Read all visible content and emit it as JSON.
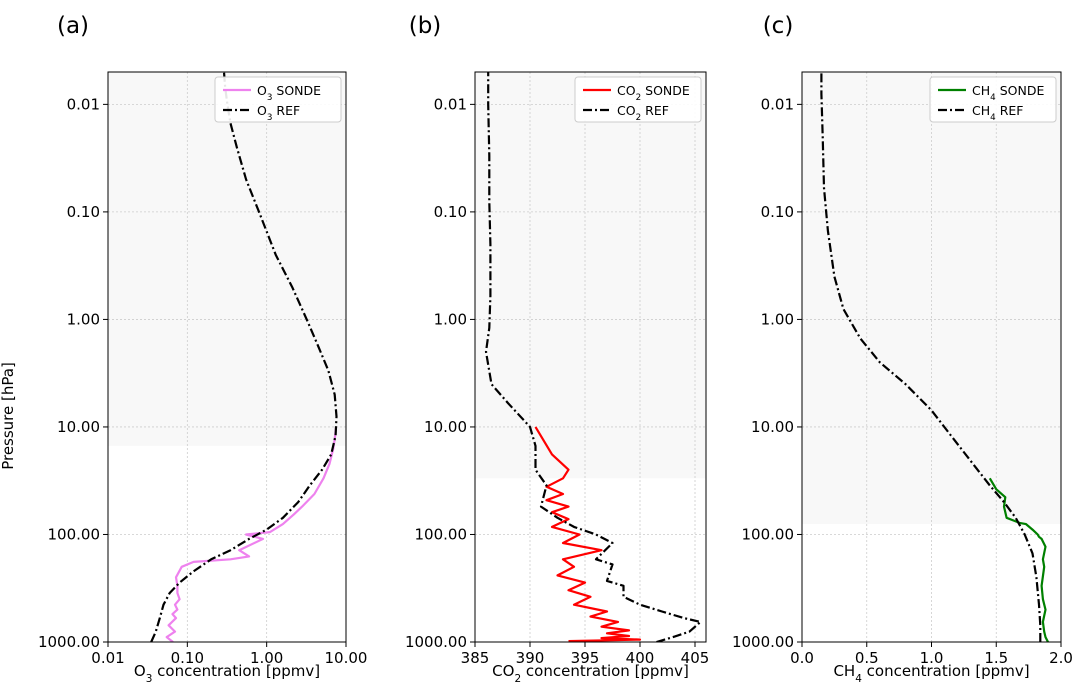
{
  "chart_data": [
    {
      "type": "line",
      "panel_label": "(a)",
      "xlabel_main": "O",
      "xlabel_sub": "3",
      "xlabel_rest": " concentration [ppmv]",
      "ylabel": "Pressure [hPa]",
      "xscale": "log",
      "yscale": "log-inverted",
      "xlim": [
        0.01,
        10.0
      ],
      "ylim": [
        1000,
        0.005
      ],
      "xticks": [
        0.01,
        0.1,
        1,
        10
      ],
      "xtick_labels": [
        "0.01",
        "0.10",
        "1.00",
        "10.00"
      ],
      "yticks": [
        0.01,
        0.1,
        1,
        10,
        100,
        1000
      ],
      "ytick_labels": [
        "0.01",
        "0.10",
        "1.00",
        "10.00",
        "100.00",
        "1000.00"
      ],
      "shade_above_p": 15,
      "grid": true,
      "legend_position": "top-right",
      "series": [
        {
          "name_main": "O",
          "name_sub": "3",
          "name_rest": " SONDE",
          "color": "#ee82ee",
          "style": "solid",
          "x": [
            0.066,
            0.055,
            0.07,
            0.058,
            0.072,
            0.065,
            0.075,
            0.07,
            0.08,
            0.075,
            0.075,
            0.072,
            0.085,
            0.12,
            0.35,
            0.6,
            0.45,
            0.9,
            0.55,
            1.1,
            1.6,
            2.2,
            2.8,
            4.0,
            5.2,
            6.2,
            6.9,
            7.2,
            7.4,
            7.5
          ],
          "y": [
            1000,
            900,
            800,
            700,
            600,
            550,
            500,
            450,
            400,
            350,
            300,
            250,
            200,
            180,
            170,
            160,
            140,
            110,
            100,
            95,
            80,
            65,
            55,
            42,
            30,
            22,
            16,
            13,
            11,
            10
          ]
        },
        {
          "name_main": "O",
          "name_sub": "3",
          "name_rest": " REF",
          "color": "#000000",
          "style": "dashdot",
          "x": [
            0.035,
            0.04,
            0.045,
            0.05,
            0.06,
            0.08,
            0.12,
            0.2,
            0.35,
            0.6,
            1.0,
            1.6,
            2.5,
            3.5,
            5.0,
            6.5,
            7.4,
            7.6,
            7.2,
            6.0,
            4.5,
            3.2,
            2.1,
            1.3,
            0.8,
            0.55,
            0.42,
            0.35,
            0.32,
            0.3,
            0.29
          ],
          "y": [
            1000,
            800,
            600,
            450,
            350,
            280,
            220,
            170,
            140,
            110,
            90,
            70,
            50,
            35,
            25,
            18,
            12,
            8,
            5,
            3,
            1.8,
            1.0,
            0.5,
            0.25,
            0.1,
            0.05,
            0.025,
            0.015,
            0.01,
            0.007,
            0.005
          ]
        }
      ]
    },
    {
      "type": "line",
      "panel_label": "(b)",
      "xlabel_main": "CO",
      "xlabel_sub": "2",
      "xlabel_rest": " concentration [ppmv]",
      "xscale": "linear",
      "yscale": "log-inverted",
      "xlim": [
        385,
        406
      ],
      "ylim": [
        1000,
        0.005
      ],
      "xticks": [
        385,
        390,
        395,
        400,
        405
      ],
      "xtick_labels": [
        "385",
        "390",
        "395",
        "400",
        "405"
      ],
      "yticks": [
        0.01,
        0.1,
        1,
        10,
        100,
        1000
      ],
      "ytick_labels": [
        "0.01",
        "0.10",
        "1.00",
        "10.00",
        "100.00",
        "1000.00"
      ],
      "shade_above_p": 30,
      "grid": true,
      "legend_position": "top-right",
      "series": [
        {
          "name_main": "CO",
          "name_sub": "2",
          "name_rest": " SONDE",
          "color": "#ff0000",
          "style": "solid",
          "x": [
            393.5,
            400,
            396.5,
            399,
            397,
            399,
            396.5,
            398,
            395.5,
            397,
            394,
            395.5,
            393.5,
            395,
            392.5,
            394,
            393,
            396.5,
            393,
            394.5,
            392,
            393.5,
            392,
            393.5,
            391.5,
            393,
            391.5,
            393,
            393.5,
            392,
            390.5
          ],
          "y": [
            980,
            950,
            920,
            880,
            830,
            780,
            720,
            650,
            580,
            520,
            450,
            380,
            330,
            280,
            240,
            200,
            170,
            140,
            120,
            100,
            85,
            72,
            62,
            55,
            48,
            42,
            36,
            30,
            25,
            18,
            10
          ]
        },
        {
          "name_main": "CO",
          "name_sub": "2",
          "name_rest": " REF",
          "color": "#000000",
          "style": "dashdot",
          "x": [
            401.5,
            403,
            404.5,
            405.5,
            404,
            402,
            400,
            398.5,
            398.5,
            397,
            397.5,
            396,
            397.5,
            396,
            394,
            392.5,
            391,
            391.5,
            390.5,
            390.5,
            390,
            388,
            386.5,
            386,
            386.3,
            386.4,
            386.4,
            386.3,
            386.3,
            386.2,
            386.2
          ],
          "y": [
            1000,
            900,
            800,
            650,
            600,
            520,
            450,
            380,
            300,
            270,
            190,
            170,
            120,
            100,
            85,
            70,
            55,
            35,
            25,
            15,
            10,
            6,
            4,
            2,
            1.2,
            0.6,
            0.2,
            0.08,
            0.03,
            0.01,
            0.005
          ]
        }
      ]
    },
    {
      "type": "line",
      "panel_label": "(c)",
      "xlabel_main": "CH",
      "xlabel_sub": "4",
      "xlabel_rest": " concentration [ppmv]",
      "xscale": "linear",
      "yscale": "log-inverted",
      "xlim": [
        0.0,
        2.0
      ],
      "ylim": [
        1000,
        0.005
      ],
      "xticks": [
        0.0,
        0.5,
        1.0,
        1.5,
        2.0
      ],
      "xtick_labels": [
        "0.0",
        "0.5",
        "1.0",
        "1.5",
        "2.0"
      ],
      "yticks": [
        0.01,
        0.1,
        1,
        10,
        100,
        1000
      ],
      "ytick_labels": [
        "0.01",
        "0.10",
        "1.00",
        "10.00",
        "100.00",
        "1000.00"
      ],
      "shade_above_p": 80,
      "grid": true,
      "legend_position": "top-right",
      "series": [
        {
          "name_main": "CH",
          "name_sub": "4",
          "name_rest": " SONDE",
          "color": "#008000",
          "style": "solid",
          "x": [
            1.9,
            1.88,
            1.87,
            1.86,
            1.88,
            1.86,
            1.85,
            1.87,
            1.86,
            1.88,
            1.85,
            1.83,
            1.82,
            1.78,
            1.73,
            1.68,
            1.58,
            1.56,
            1.57,
            1.5,
            1.45
          ],
          "y": [
            1000,
            900,
            800,
            650,
            500,
            400,
            300,
            200,
            170,
            130,
            110,
            105,
            100,
            90,
            80,
            78,
            70,
            55,
            45,
            38,
            30
          ]
        },
        {
          "name_main": "CH",
          "name_sub": "4",
          "name_rest": " REF",
          "color": "#000000",
          "style": "dashdot",
          "x": [
            1.84,
            1.84,
            1.83,
            1.81,
            1.78,
            1.72,
            1.65,
            1.56,
            1.45,
            1.32,
            1.15,
            1.0,
            0.8,
            0.6,
            0.45,
            0.32,
            0.25,
            0.2,
            0.17,
            0.16,
            0.15,
            0.15
          ],
          "y": [
            1000,
            700,
            450,
            250,
            150,
            100,
            70,
            50,
            35,
            22,
            12,
            7,
            4,
            2.5,
            1.5,
            0.8,
            0.4,
            0.15,
            0.06,
            0.02,
            0.008,
            0.005
          ]
        }
      ]
    }
  ]
}
